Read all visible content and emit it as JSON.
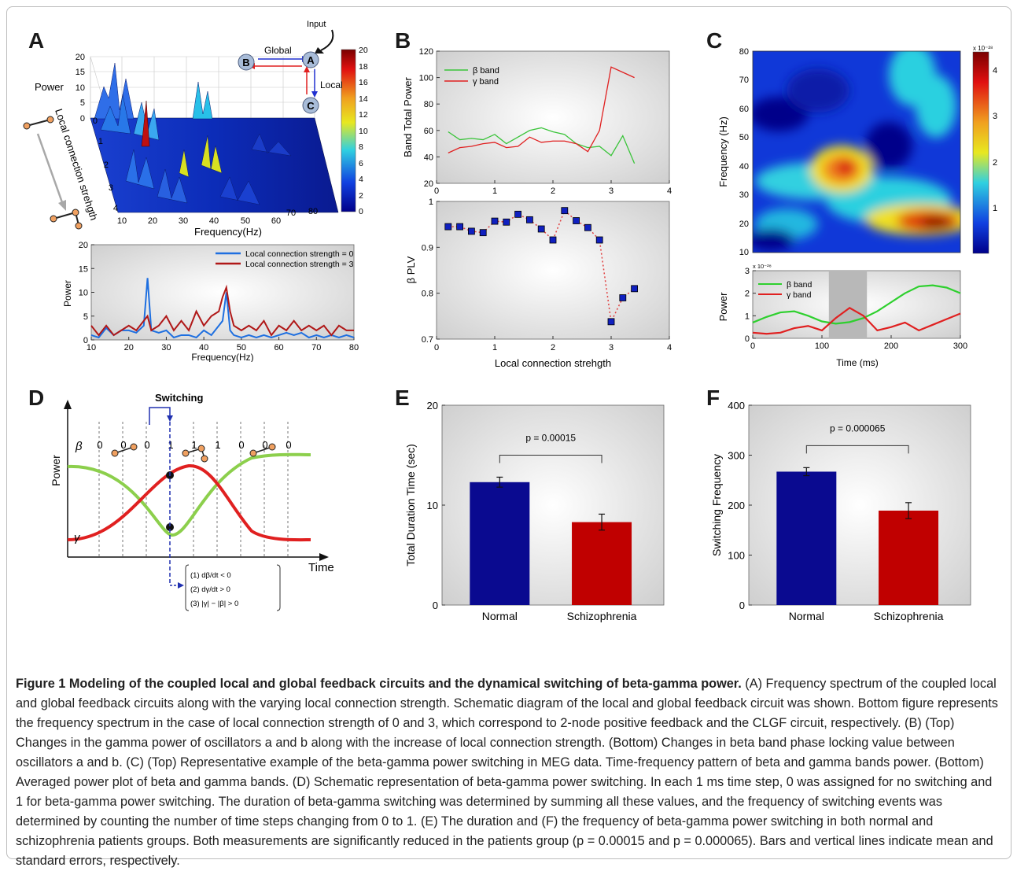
{
  "figure": {
    "panel_labels": [
      "A",
      "B",
      "C",
      "D",
      "E",
      "F"
    ],
    "caption_title": "Figure 1 Modeling of the coupled local and global feedback circuits and the dynamical switching of beta-gamma power.",
    "caption_body": "(A) Frequency spectrum of the coupled local and global feedback circuits along with the varying local connection strength. Schematic diagram of the local and global feedback circuit was shown. Bottom figure represents the frequency spectrum in the case of local connection strength of 0 and 3, which correspond to 2-node positive feedback and the CLGF circuit, respectively. (B) (Top) Changes in the gamma power of oscillators a and b along with the increase of local connection strength. (Bottom) Changes in beta band phase locking value between oscillators a and b. (C) (Top) Representative example of the beta-gamma power switching in MEG data. Time-frequency pattern of beta and gamma bands power. (Bottom) Averaged power plot of beta and gamma bands. (D) Schematic representation of beta-gamma power switching. In each 1 ms time step, 0 was assigned for no switching and 1 for beta-gamma power switching. The duration of beta-gamma switching was determined by summing all these values, and the frequency of switching events was determined by counting the number of time steps changing from 0 to 1. (E) The duration and (F) the frequency of beta-gamma power switching in both normal and schizophrenia patients groups. Both measurements are significantly reduced in the patients group (p = 0.00015 and p = 0.000065). Bars and vertical lines indicate mean and standard errors, respectively."
  },
  "panelA": {
    "surface": {
      "zlabel": "Power",
      "ylabel": "Local connection strehgth",
      "xlabel": "Frequency(Hz)",
      "z_ticks": [
        "0",
        "5",
        "10",
        "15",
        "20"
      ],
      "y_ticks": [
        "0",
        "1",
        "2",
        "3",
        "4"
      ],
      "x_ticks": [
        "10",
        "20",
        "30",
        "40",
        "50",
        "60",
        "70",
        "80"
      ],
      "colorbar_ticks": [
        "20",
        "18",
        "16",
        "14",
        "12",
        "10",
        "8",
        "6",
        "4",
        "2",
        "0"
      ],
      "colors": {
        "low": "#0a1aa0",
        "mid": "#2ec8e0",
        "high": "#f0e020",
        "peak": "#c01010"
      }
    },
    "diagram": {
      "input_label": "Input",
      "global_label": "Global",
      "local_label": "Local",
      "nodes": [
        "A",
        "B",
        "C"
      ]
    }
  },
  "panelB": {
    "top": {
      "ylabel": "Band Total Power",
      "y_ticks": [
        "20",
        "40",
        "60",
        "80",
        "100",
        "120"
      ],
      "x_ticks": [
        "0",
        "1",
        "2",
        "3",
        "4"
      ]
    },
    "bottom": {
      "ylabel": "β PLV",
      "xlabel": "Local connection strehgth",
      "y_ticks": [
        "0.7",
        "0.8",
        "0.9",
        "1"
      ],
      "x_ticks": [
        "0",
        "1",
        "2",
        "3",
        "4"
      ]
    }
  },
  "panelC": {
    "top": {
      "ylabel": "Frequency (Hz)",
      "y_ticks": [
        "80",
        "70",
        "60",
        "50",
        "40",
        "30",
        "20",
        "10"
      ],
      "colorbar_ticks": [
        "4",
        "3",
        "2",
        "1"
      ],
      "colorbar_exp": "x 10⁻²⁸"
    },
    "bottom": {
      "ylabel": "Power",
      "xlabel": "Time (ms)",
      "y_ticks": [
        "0",
        "1",
        "2",
        "3"
      ],
      "x_ticks": [
        "0",
        "100",
        "200",
        "300"
      ],
      "y_exp": "x 10⁻²⁸"
    }
  },
  "panelD": {
    "switching_label": "Switching",
    "states": [
      "0",
      "0",
      "0",
      "1",
      "1",
      "1",
      "0",
      "0",
      "0"
    ],
    "ylabel": "Power",
    "xlabel": "Time",
    "beta": "β",
    "gamma": "γ",
    "conditions": [
      "(1) dβ/dt < 0",
      "(2) dγ/dt > 0",
      "(3) |γ| − |β| > 0"
    ]
  },
  "chart_data": [
    {
      "type": "line",
      "title": "",
      "xlabel": "Frequency(Hz)",
      "ylabel": "Power",
      "x": [
        10,
        12,
        14,
        16,
        18,
        20,
        22,
        24,
        25,
        26,
        28,
        30,
        32,
        34,
        36,
        38,
        40,
        42,
        44,
        45,
        46,
        47,
        48,
        50,
        52,
        54,
        56,
        58,
        60,
        62,
        64,
        66,
        68,
        70,
        72,
        74,
        76,
        78,
        80
      ],
      "series": [
        {
          "name": "Local connection strength = 0",
          "color": "#1e6fe0",
          "values": [
            1,
            0.5,
            2.5,
            1,
            2,
            2,
            1.5,
            3,
            13,
            2,
            1.5,
            2,
            0.5,
            1,
            1,
            0.5,
            2,
            1,
            3,
            4,
            10,
            2,
            1,
            0.5,
            1,
            0.5,
            1,
            0.5,
            1,
            1.5,
            1,
            1.5,
            0.5,
            1,
            0.5,
            1,
            0.5,
            1,
            0.5
          ]
        },
        {
          "name": "Local connection strength = 3",
          "color": "#b01818",
          "values": [
            3,
            1,
            3,
            1,
            2,
            3,
            2,
            4,
            5,
            2,
            3,
            5,
            2,
            4,
            2,
            6,
            3,
            5,
            6,
            9,
            11,
            6,
            3,
            2,
            3,
            2,
            4,
            1,
            3,
            2,
            4,
            2,
            3,
            2,
            3,
            1,
            3,
            2,
            2
          ]
        }
      ],
      "xlim": [
        10,
        80
      ],
      "ylim": [
        0,
        20
      ],
      "y_ticks": [
        0,
        5,
        10,
        15,
        20
      ],
      "legend": "top-right"
    },
    {
      "type": "line",
      "title": "",
      "xlabel": "",
      "ylabel": "Band Total Power",
      "x": [
        0.2,
        0.4,
        0.6,
        0.8,
        1.0,
        1.2,
        1.4,
        1.6,
        1.8,
        2.0,
        2.2,
        2.4,
        2.6,
        2.8,
        3.0,
        3.2,
        3.4
      ],
      "series": [
        {
          "name": "β band",
          "color": "#3ac43a",
          "values": [
            59,
            53,
            54,
            53,
            57,
            50,
            55,
            60,
            62,
            59,
            57,
            50,
            47,
            48,
            41,
            56,
            35
          ]
        },
        {
          "name": "γ band",
          "color": "#e02020",
          "values": [
            43,
            47,
            48,
            50,
            51,
            47,
            48,
            55,
            51,
            52,
            52,
            50,
            44,
            60,
            108,
            104,
            100
          ]
        }
      ],
      "xlim": [
        0,
        4
      ],
      "ylim": [
        20,
        120
      ],
      "legend": "top-left"
    },
    {
      "type": "scatter",
      "title": "",
      "xlabel": "Local connection strehgth",
      "ylabel": "β PLV",
      "x": [
        0.2,
        0.4,
        0.6,
        0.8,
        1.0,
        1.2,
        1.4,
        1.6,
        1.8,
        2.0,
        2.2,
        2.4,
        2.6,
        2.8,
        3.0,
        3.2,
        3.4
      ],
      "series": [
        {
          "name": "",
          "values": [
            0.945,
            0.945,
            0.935,
            0.932,
            0.957,
            0.955,
            0.972,
            0.96,
            0.94,
            0.916,
            0.98,
            0.958,
            0.943,
            0.916,
            0.738,
            0.79,
            0.81
          ]
        }
      ],
      "xlim": [
        0,
        4
      ],
      "ylim": [
        0.7,
        1.0
      ]
    },
    {
      "type": "heatmap",
      "title": "",
      "xlabel": "",
      "ylabel": "Frequency (Hz)",
      "ylim": [
        10,
        80
      ],
      "colorbar": [
        0,
        4.5
      ]
    },
    {
      "type": "line",
      "title": "",
      "xlabel": "Time (ms)",
      "ylabel": "Power",
      "x": [
        0,
        20,
        40,
        60,
        80,
        100,
        120,
        140,
        160,
        180,
        200,
        220,
        240,
        260,
        280,
        300
      ],
      "series": [
        {
          "name": "β band",
          "color": "#2ed02e",
          "values": [
            0.7,
            0.95,
            1.15,
            1.2,
            1.0,
            0.75,
            0.65,
            0.72,
            0.9,
            1.2,
            1.6,
            2.0,
            2.3,
            2.35,
            2.25,
            2.0
          ]
        },
        {
          "name": "γ band",
          "color": "#e02020",
          "values": [
            0.25,
            0.2,
            0.25,
            0.45,
            0.55,
            0.35,
            0.9,
            1.35,
            1.0,
            0.35,
            0.5,
            0.7,
            0.35,
            0.6,
            0.85,
            1.1
          ]
        }
      ],
      "xlim": [
        0,
        300
      ],
      "ylim": [
        0,
        3
      ],
      "highlight_x": [
        110,
        165
      ],
      "legend": "top-left"
    },
    {
      "type": "bar",
      "title": "",
      "xlabel": "",
      "ylabel": "Total Duration Time (sec)",
      "categories": [
        "Normal",
        "Schizophrenia"
      ],
      "values": [
        12.3,
        8.3
      ],
      "errors": [
        0.5,
        0.8
      ],
      "colors": [
        "#0a0a90",
        "#c00000"
      ],
      "ylim": [
        0,
        20
      ],
      "y_ticks": [
        0,
        10,
        20
      ],
      "annotation": "p = 0.00015"
    },
    {
      "type": "bar",
      "title": "",
      "xlabel": "",
      "ylabel": "Switching Frequency",
      "categories": [
        "Normal",
        "Schizophrenia"
      ],
      "values": [
        267,
        189
      ],
      "errors": [
        8,
        16
      ],
      "colors": [
        "#0a0a90",
        "#c00000"
      ],
      "ylim": [
        0,
        400
      ],
      "y_ticks": [
        0,
        100,
        200,
        300,
        400
      ],
      "annotation": "p = 0.000065"
    }
  ]
}
